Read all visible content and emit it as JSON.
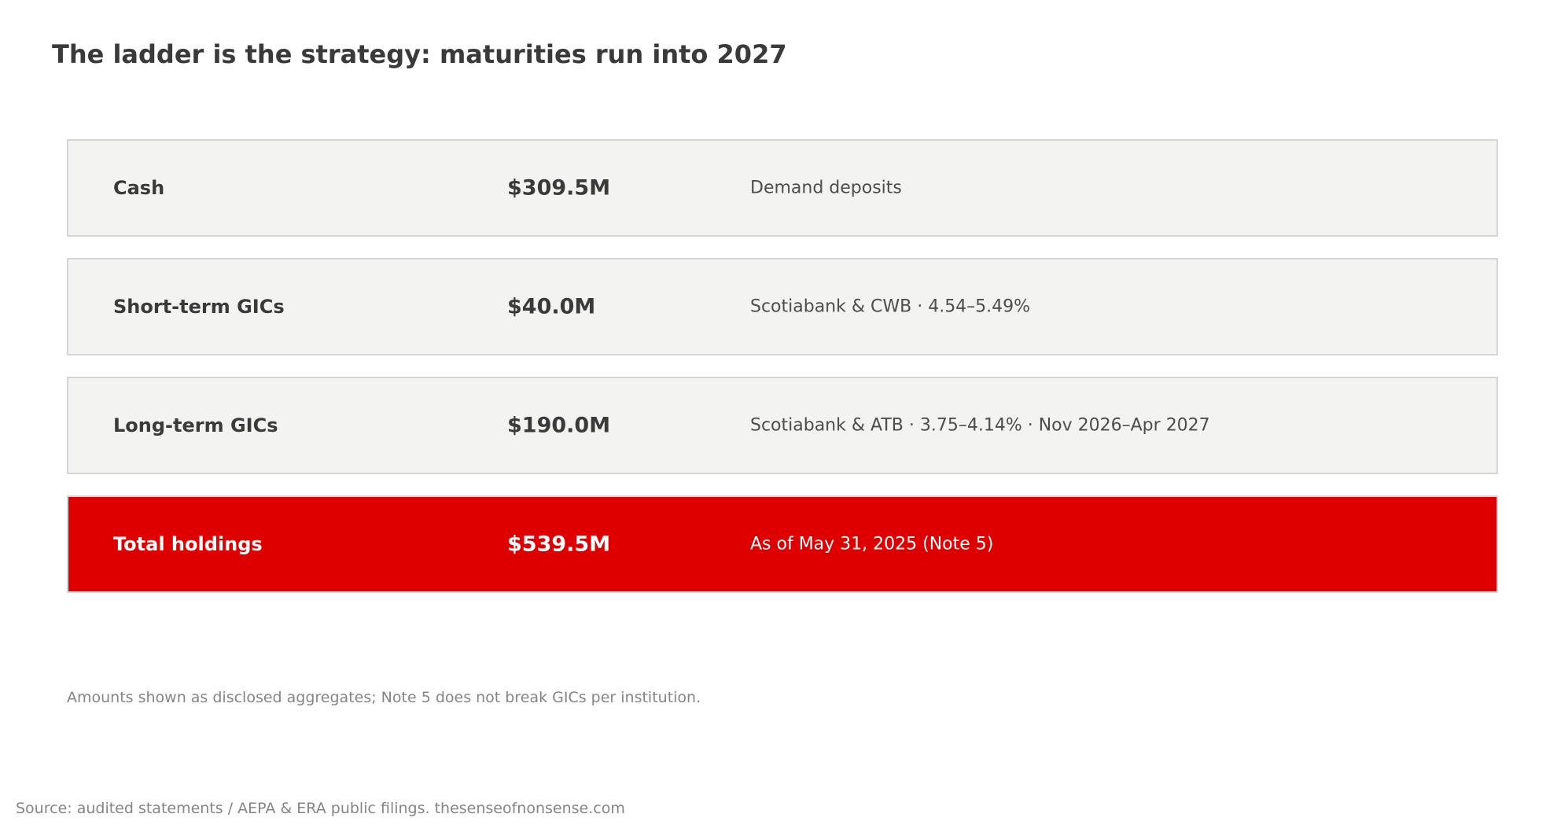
{
  "title": "The ladder is the strategy: maturities run into 2027",
  "rows": [
    {
      "label": "Cash",
      "amount": "$309.5M",
      "detail": "Demand deposits"
    },
    {
      "label": "Short-term GICs",
      "amount": "$40.0M",
      "detail": "Scotiabank & CWB · 4.54–5.49%"
    },
    {
      "label": "Long-term GICs",
      "amount": "$190.0M",
      "detail": "Scotiabank & ATB · 3.75–4.14% · Nov 2026–Apr 2027"
    },
    {
      "label": "Total holdings",
      "amount": "$539.5M",
      "detail": "As of May 31, 2025 (Note 5)"
    }
  ],
  "note": "Amounts shown as disclosed aggregates; Note 5 does not break GICs per institution.",
  "source": "Source: audited statements / AEPA & ERA public filings. thesenseofnonsense.com",
  "colors": {
    "row_background": "#f3f3f2",
    "row_border": "#d6d6d6",
    "total_background": "#de0000",
    "text": "#3a3a3a",
    "muted_text": "#858585"
  }
}
